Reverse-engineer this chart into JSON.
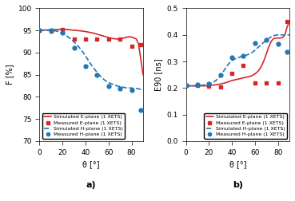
{
  "fig_width": 3.69,
  "fig_height": 2.52,
  "dpi": 100,
  "red_solid_color": "#d62728",
  "blue_dash_color": "#1f77b4",
  "plot_a": {
    "ylabel": "F [%]",
    "xlabel": "θ [°]",
    "ylim": [
      70,
      100
    ],
    "xlim": [
      0,
      90
    ],
    "yticks": [
      70,
      75,
      80,
      85,
      90,
      95,
      100
    ],
    "xticks": [
      0,
      20,
      40,
      60,
      80
    ],
    "label_a": "a)",
    "sim_e_x": [
      0,
      2,
      4,
      6,
      8,
      10,
      12,
      14,
      16,
      18,
      20,
      22,
      24,
      26,
      28,
      30,
      32,
      34,
      36,
      38,
      40,
      42,
      44,
      46,
      48,
      50,
      52,
      54,
      56,
      58,
      60,
      62,
      64,
      66,
      68,
      70,
      72,
      74,
      76,
      78,
      80,
      82,
      84,
      86,
      88,
      90
    ],
    "sim_e_y": [
      95.0,
      95.05,
      95.1,
      95.1,
      95.12,
      95.15,
      95.18,
      95.2,
      95.22,
      95.25,
      95.25,
      95.22,
      95.2,
      95.18,
      95.1,
      95.05,
      95.0,
      94.95,
      94.9,
      94.82,
      94.75,
      94.65,
      94.55,
      94.45,
      94.3,
      94.15,
      94.0,
      93.85,
      93.7,
      93.55,
      93.4,
      93.25,
      93.15,
      93.1,
      93.05,
      93.1,
      93.2,
      93.35,
      93.5,
      93.6,
      93.5,
      93.3,
      93.1,
      92.0,
      88.5,
      85.0
    ],
    "meas_e_x": [
      0,
      10,
      20,
      30,
      40,
      50,
      60,
      70,
      80,
      88
    ],
    "meas_e_y": [
      95.0,
      94.8,
      95.2,
      93.0,
      93.0,
      93.0,
      93.0,
      93.1,
      91.5,
      91.8
    ],
    "sim_h_x": [
      0,
      2,
      4,
      6,
      8,
      10,
      12,
      14,
      16,
      18,
      20,
      22,
      24,
      26,
      28,
      30,
      32,
      34,
      36,
      38,
      40,
      42,
      44,
      46,
      48,
      50,
      52,
      54,
      56,
      58,
      60,
      62,
      64,
      66,
      68,
      70,
      72,
      74,
      76,
      78,
      80,
      82,
      84,
      86,
      88,
      90
    ],
    "sim_h_y": [
      95.0,
      95.0,
      95.0,
      95.0,
      95.0,
      95.0,
      94.95,
      94.9,
      94.8,
      94.6,
      94.3,
      94.0,
      93.7,
      93.3,
      92.9,
      92.4,
      91.9,
      91.3,
      90.7,
      90.0,
      89.2,
      88.4,
      87.6,
      86.8,
      86.2,
      85.5,
      84.9,
      84.4,
      83.9,
      83.5,
      83.2,
      83.0,
      82.8,
      82.6,
      82.4,
      82.3,
      82.2,
      82.1,
      82.0,
      82.0,
      82.0,
      81.9,
      81.9,
      81.8,
      81.7,
      81.7
    ],
    "meas_h_x": [
      0,
      10,
      20,
      30,
      40,
      50,
      60,
      70,
      80,
      88
    ],
    "meas_h_y": [
      95.0,
      95.0,
      94.5,
      91.0,
      87.0,
      85.0,
      82.5,
      81.8,
      81.5,
      77.0
    ]
  },
  "plot_b": {
    "ylabel": "E90 [ns]",
    "xlabel": "θ [°]",
    "ylim": [
      0,
      0.5
    ],
    "xlim": [
      0,
      90
    ],
    "yticks": [
      0,
      0.1,
      0.2,
      0.3,
      0.4,
      0.5
    ],
    "xticks": [
      0,
      20,
      40,
      60,
      80
    ],
    "label_b": "b)",
    "sim_e_x": [
      0,
      2,
      4,
      6,
      8,
      10,
      12,
      14,
      16,
      18,
      20,
      22,
      24,
      26,
      28,
      30,
      32,
      34,
      36,
      38,
      40,
      42,
      44,
      46,
      48,
      50,
      52,
      54,
      56,
      58,
      60,
      62,
      64,
      66,
      68,
      70,
      72,
      74,
      76,
      78,
      80,
      82,
      84,
      86,
      88,
      90
    ],
    "sim_e_y": [
      0.208,
      0.208,
      0.208,
      0.208,
      0.208,
      0.208,
      0.208,
      0.208,
      0.208,
      0.208,
      0.209,
      0.21,
      0.211,
      0.212,
      0.213,
      0.215,
      0.217,
      0.219,
      0.222,
      0.225,
      0.228,
      0.23,
      0.232,
      0.234,
      0.236,
      0.238,
      0.24,
      0.242,
      0.244,
      0.248,
      0.253,
      0.26,
      0.27,
      0.285,
      0.305,
      0.33,
      0.355,
      0.375,
      0.385,
      0.388,
      0.388,
      0.388,
      0.39,
      0.4,
      0.43,
      0.45
    ],
    "meas_e_x": [
      0,
      10,
      20,
      30,
      40,
      50,
      60,
      70,
      80,
      88
    ],
    "meas_e_y": [
      0.21,
      0.21,
      0.208,
      0.205,
      0.255,
      0.285,
      0.22,
      0.22,
      0.22,
      0.45
    ],
    "sim_h_x": [
      0,
      2,
      4,
      6,
      8,
      10,
      12,
      14,
      16,
      18,
      20,
      22,
      24,
      26,
      28,
      30,
      32,
      34,
      36,
      38,
      40,
      42,
      44,
      46,
      48,
      50,
      52,
      54,
      56,
      58,
      60,
      62,
      64,
      66,
      68,
      70,
      72,
      74,
      76,
      78,
      80,
      82,
      84,
      86,
      88,
      90
    ],
    "sim_h_y": [
      0.208,
      0.208,
      0.208,
      0.208,
      0.208,
      0.208,
      0.208,
      0.21,
      0.212,
      0.214,
      0.215,
      0.218,
      0.222,
      0.228,
      0.235,
      0.245,
      0.258,
      0.272,
      0.285,
      0.295,
      0.303,
      0.308,
      0.312,
      0.315,
      0.318,
      0.32,
      0.323,
      0.326,
      0.33,
      0.335,
      0.342,
      0.35,
      0.358,
      0.366,
      0.373,
      0.38,
      0.387,
      0.392,
      0.396,
      0.399,
      0.4,
      0.4,
      0.4,
      0.4,
      0.4,
      0.4
    ],
    "meas_h_x": [
      0,
      10,
      20,
      30,
      40,
      50,
      60,
      70,
      80,
      88
    ],
    "meas_h_y": [
      0.21,
      0.212,
      0.215,
      0.25,
      0.315,
      0.32,
      0.37,
      0.38,
      0.365,
      0.335
    ]
  },
  "legend_entries": [
    "Simulated E-plane (1 XETS)",
    "Measured E-plane (1 XETS)",
    "Simulated H-plane (1 XETS)",
    "Measured H-plane (1 XETS)"
  ]
}
